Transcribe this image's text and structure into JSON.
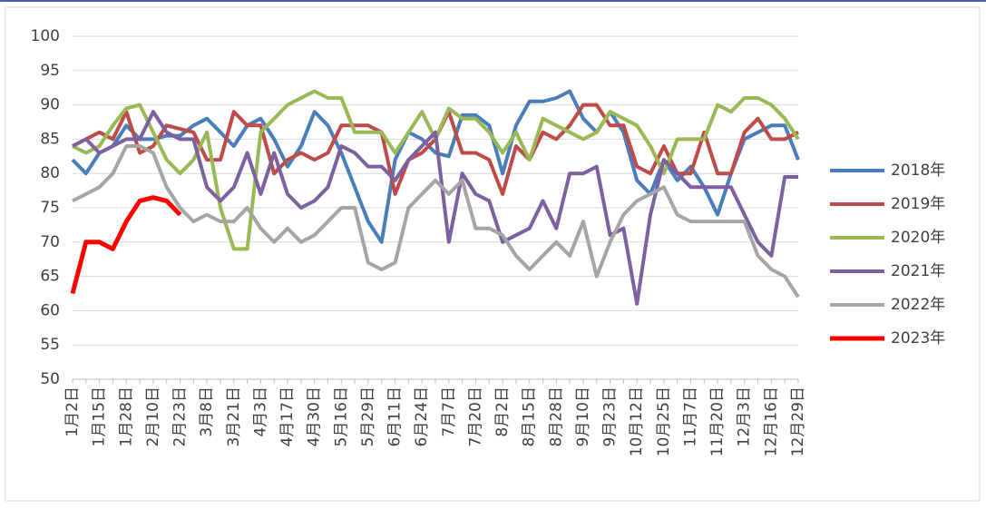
{
  "chart_data": {
    "type": "line",
    "categories": [
      "1月2日",
      null,
      "1月15日",
      null,
      "1月28日",
      null,
      "2月10日",
      null,
      "2月23日",
      null,
      "3月8日",
      null,
      "3月21日",
      null,
      "4月3日",
      null,
      "4月17日",
      null,
      "4月30日",
      null,
      "5月16日",
      null,
      "5月29日",
      null,
      "6月11日",
      null,
      "6月24日",
      null,
      "7月7日",
      null,
      "7月20日",
      null,
      "8月2日",
      null,
      "8月15日",
      null,
      "8月28日",
      null,
      "9月10日",
      null,
      "9月23日",
      null,
      "10月12日",
      null,
      "10月25日",
      null,
      "11月7日",
      null,
      "11月20日",
      null,
      "12月3日",
      null,
      "12月16日",
      null,
      "12月29日"
    ],
    "ylim": [
      50,
      100
    ],
    "yticks": [
      50,
      55,
      60,
      65,
      70,
      75,
      80,
      85,
      90,
      95,
      100
    ],
    "grid": true,
    "legend": "right",
    "series": [
      {
        "name": "2018年",
        "color": "#4a7ebb",
        "width": 4,
        "values": [
          82,
          80,
          83,
          84,
          87,
          85,
          85,
          85.5,
          85.5,
          87,
          88,
          86,
          84,
          87,
          88,
          85,
          81,
          84,
          89,
          87,
          83,
          78,
          73,
          70,
          82,
          86,
          85,
          83,
          82.5,
          88.5,
          88.5,
          87,
          80,
          87,
          90.5,
          90.5,
          91,
          92,
          88,
          86,
          89,
          86,
          79,
          77,
          82,
          79,
          81,
          78,
          74,
          80,
          85,
          86,
          87,
          87,
          82
        ]
      },
      {
        "name": "2019年",
        "color": "#be4b48",
        "width": 4,
        "values": [
          84,
          85,
          86,
          85,
          89,
          83,
          84,
          87,
          86.5,
          86,
          82,
          82,
          89,
          87,
          87,
          80,
          82,
          83,
          82,
          83,
          87,
          87,
          87,
          86,
          77,
          82,
          83,
          85,
          89,
          83,
          83,
          82,
          77,
          84,
          82,
          86,
          85,
          87,
          90,
          90,
          87,
          87,
          81,
          80,
          84,
          80,
          80,
          86,
          80,
          80,
          86,
          88,
          85,
          85,
          86
        ]
      },
      {
        "name": "2020年",
        "color": "#98b954",
        "width": 4,
        "values": [
          84,
          83,
          84,
          87,
          89.5,
          90,
          86,
          82,
          80,
          82,
          86,
          75,
          69,
          69,
          86,
          88,
          90,
          91,
          92,
          91,
          91,
          86,
          86,
          86,
          83,
          86,
          89,
          85,
          89.5,
          88,
          88,
          86,
          83,
          86,
          82,
          88,
          87,
          86,
          85,
          86,
          89,
          88,
          87,
          84,
          80,
          85,
          85,
          85,
          90,
          89,
          91,
          91,
          90,
          88,
          85
        ]
      },
      {
        "name": "2021年",
        "color": "#7d60a0",
        "width": 4,
        "values": [
          84,
          85,
          83,
          84,
          85,
          85,
          89,
          86,
          85,
          85,
          78,
          76,
          78,
          83,
          77,
          83,
          77,
          75,
          76,
          78,
          84,
          83,
          81,
          81,
          79,
          82,
          84,
          86,
          70,
          80,
          77,
          76,
          70,
          71,
          72,
          76,
          72,
          80,
          80,
          81,
          71,
          72,
          61,
          74,
          82,
          80,
          78,
          78,
          78,
          78,
          74,
          70,
          68,
          79.5,
          79.5
        ]
      },
      {
        "name": "2022年",
        "color": "#a5a5a5",
        "width": 4,
        "values": [
          76,
          77,
          78,
          80,
          84,
          84,
          83,
          78,
          75,
          73,
          74,
          73,
          73,
          75,
          72,
          70,
          72,
          70,
          71,
          73,
          75,
          75,
          67,
          66,
          67,
          75,
          77,
          79,
          77,
          79,
          72,
          72,
          71,
          68,
          66,
          68,
          70,
          68,
          73,
          65,
          70,
          74,
          76,
          77,
          78,
          74,
          73,
          73,
          73,
          73,
          73,
          68,
          66,
          65,
          62
        ]
      },
      {
        "name": "2023年",
        "color": "#ff0000",
        "width": 5,
        "values": [
          62.5,
          70,
          70,
          69,
          73,
          76,
          76.5,
          76,
          74,
          null,
          null,
          null,
          null,
          null,
          null,
          null,
          null,
          null,
          null,
          null,
          null,
          null,
          null,
          null,
          null,
          null,
          null,
          null,
          null,
          null,
          null,
          null,
          null,
          null,
          null,
          null,
          null,
          null,
          null,
          null,
          null,
          null,
          null,
          null,
          null,
          null,
          null,
          null,
          null,
          null,
          null,
          null,
          null,
          null,
          null
        ]
      }
    ]
  }
}
